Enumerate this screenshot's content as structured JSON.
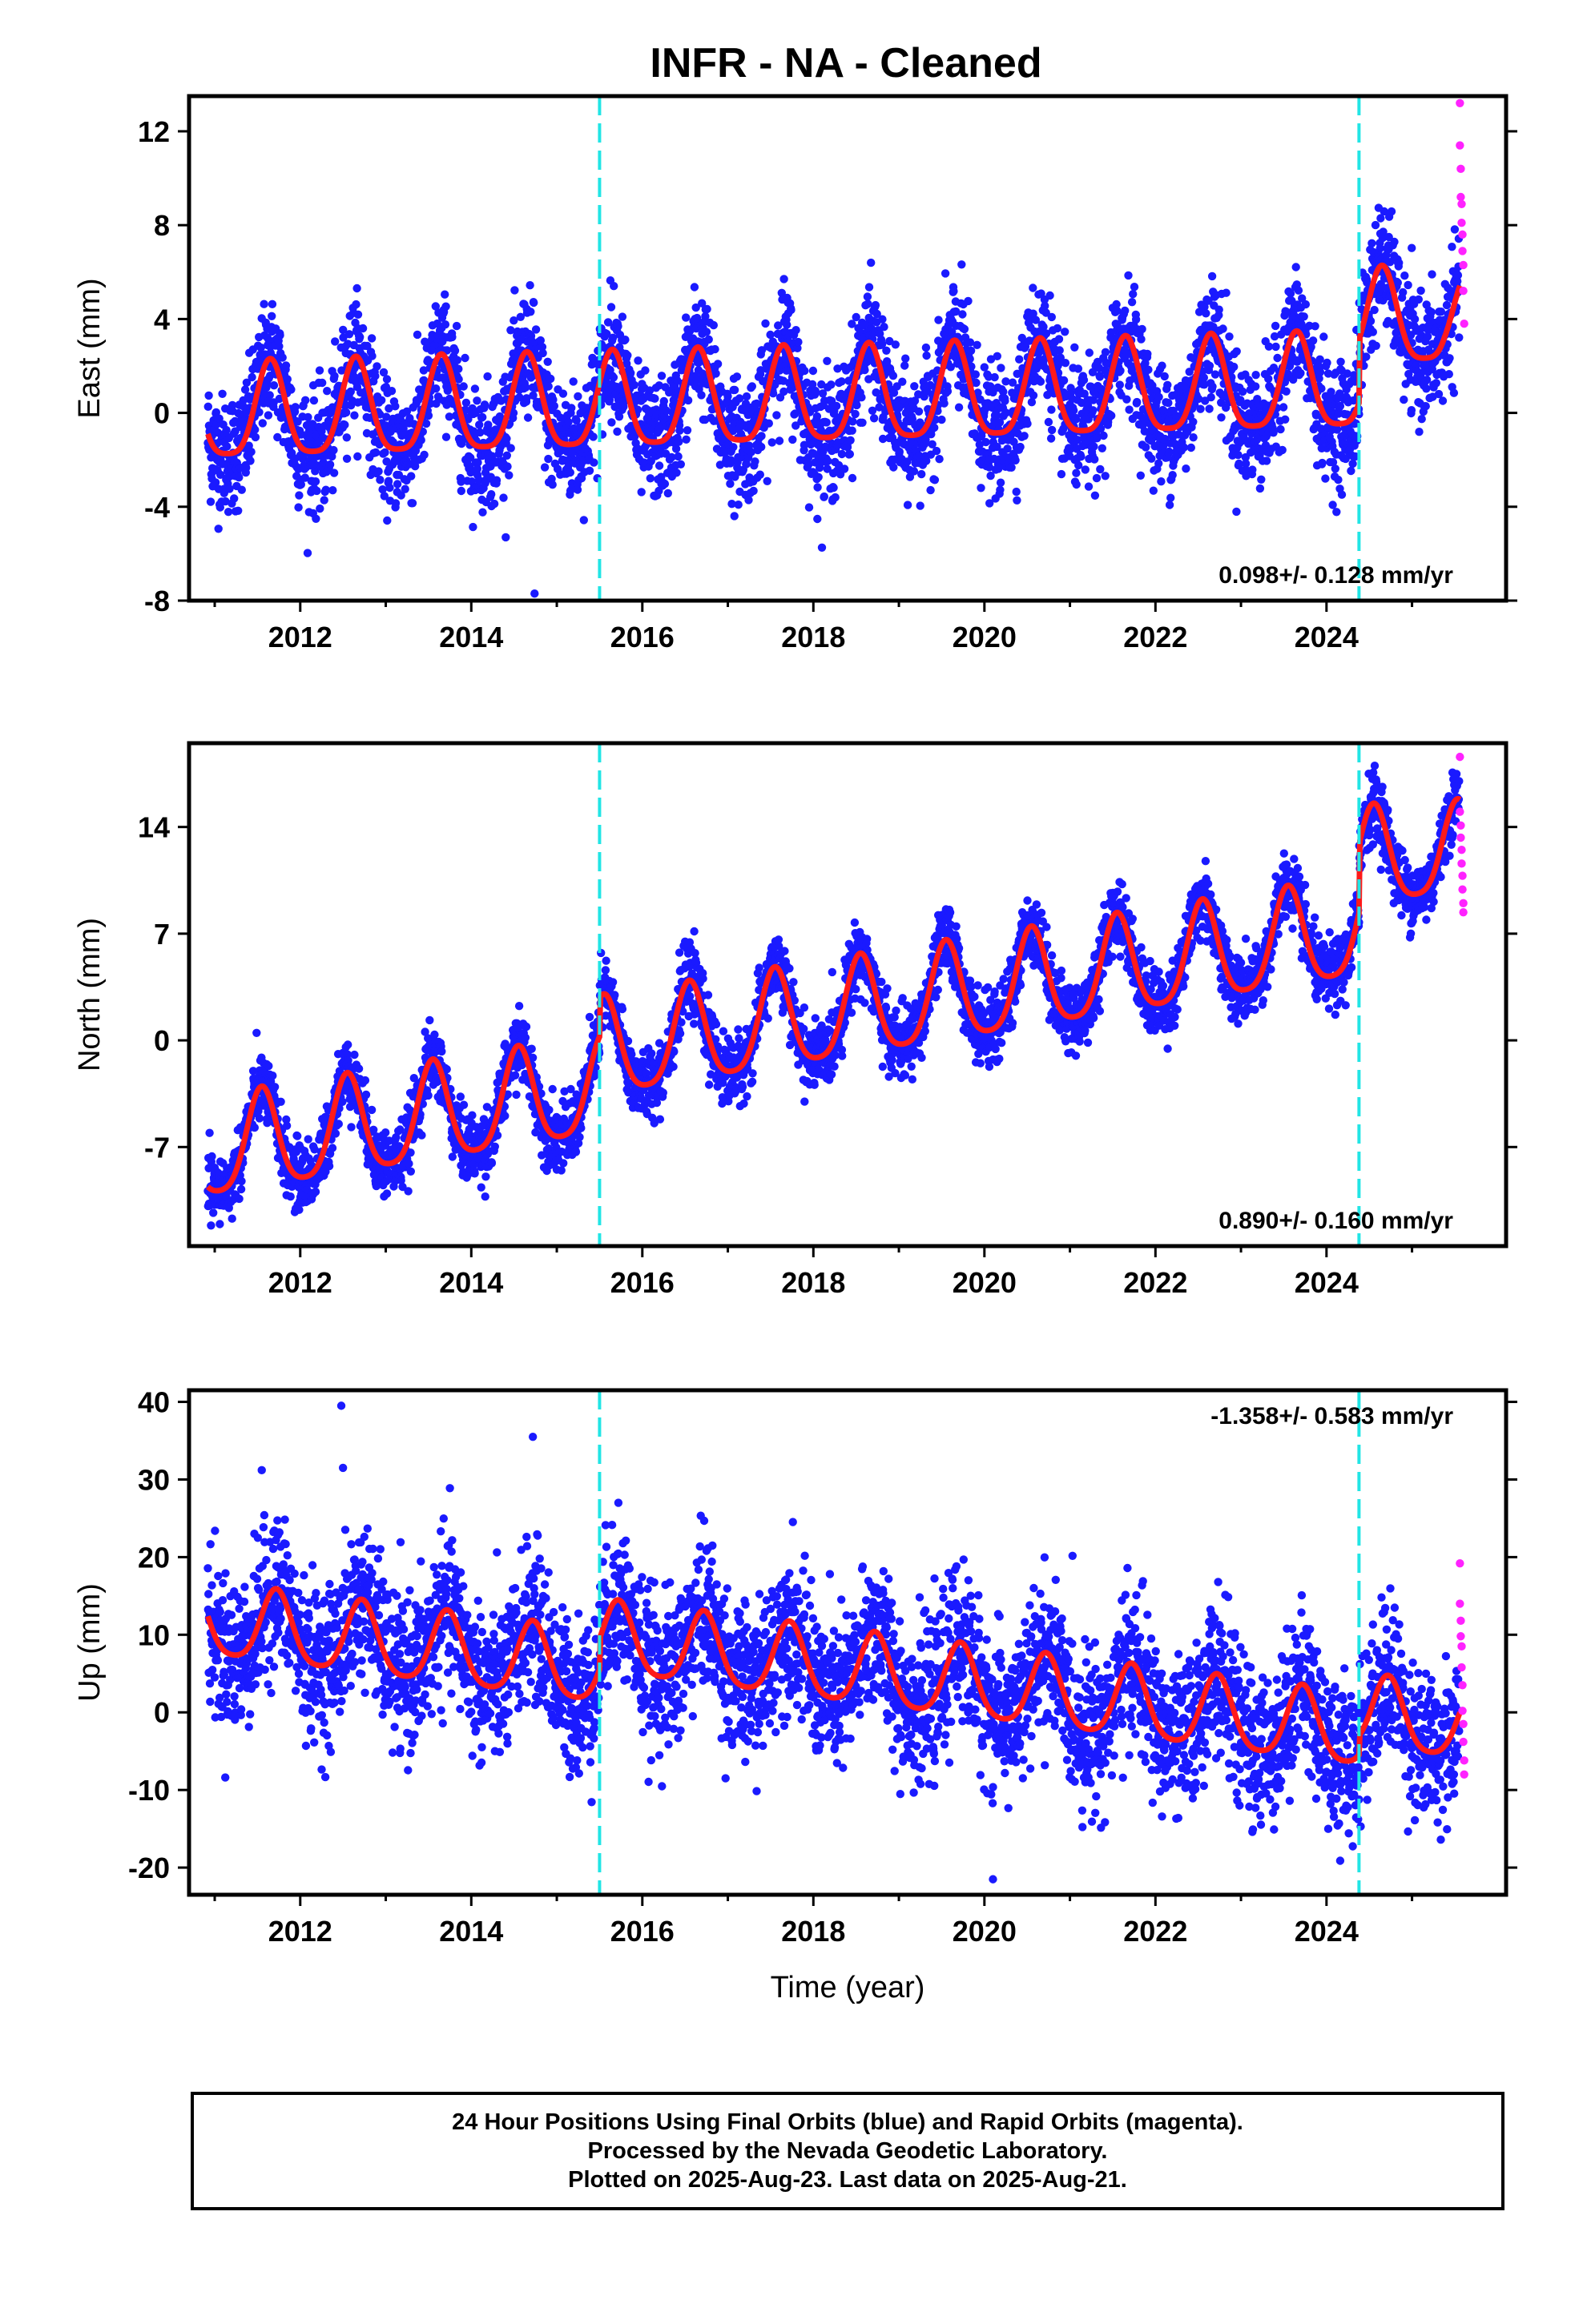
{
  "title": "INFR  - NA - Cleaned",
  "colors": {
    "final_orbits": "#1a1aff",
    "rapid_orbits": "#ff22ff",
    "model_fit": "#ff1a1a",
    "break_line": "#22e5e5",
    "frame": "#000000"
  },
  "chart_data": [
    {
      "type": "scatter",
      "component": "East",
      "ylabel": "East (mm)",
      "xlim": [
        2010.7,
        2026.1
      ],
      "ylim": [
        -8,
        13.5
      ],
      "yticks": [
        -8,
        -4,
        0,
        4,
        8,
        12
      ],
      "xticks": [
        2012,
        2014,
        2016,
        2018,
        2020,
        2022,
        2024
      ],
      "rate_label": "0.098+/- 0.128 mm/yr",
      "rate_position": "bottom-right",
      "breaks": [
        2015.5,
        2024.38
      ],
      "model": {
        "intercept": -0.2,
        "trend": 0.098,
        "annual_amp": 2.0,
        "annual_phase": 2011.65,
        "semiannual_amp": 0.45,
        "offset_at_break2": 2.7
      },
      "scatter_std": 1.25,
      "rapid_points": [
        {
          "x": 2025.56,
          "y": 13.2
        },
        {
          "x": 2025.56,
          "y": 11.4
        },
        {
          "x": 2025.57,
          "y": 10.4
        },
        {
          "x": 2025.57,
          "y": 9.2
        },
        {
          "x": 2025.58,
          "y": 8.9
        },
        {
          "x": 2025.58,
          "y": 8.1
        },
        {
          "x": 2025.59,
          "y": 7.6
        },
        {
          "x": 2025.59,
          "y": 6.9
        },
        {
          "x": 2025.6,
          "y": 6.3
        },
        {
          "x": 2025.6,
          "y": 5.2
        },
        {
          "x": 2025.61,
          "y": 3.8
        }
      ],
      "outliers": [
        {
          "x": 2014.74,
          "y": -7.7
        }
      ]
    },
    {
      "type": "scatter",
      "component": "North",
      "ylabel": "North (mm)",
      "xlim": [
        2010.7,
        2026.1
      ],
      "ylim": [
        -13.5,
        19.5
      ],
      "yticks": [
        -7,
        0,
        7,
        14
      ],
      "xticks": [
        2012,
        2014,
        2016,
        2018,
        2020,
        2022,
        2024
      ],
      "rate_label": "0.890+/- 0.160 mm/yr",
      "rate_position": "bottom-right",
      "breaks": [
        2015.5,
        2024.38
      ],
      "model": {
        "intercept": -7.3,
        "trend": 0.89,
        "annual_amp": 3.2,
        "annual_phase": 2011.55,
        "semiannual_amp": 0.6,
        "offset_at_break1": 2.5,
        "offset_at_break2": 4.5
      },
      "scatter_std": 1.1,
      "rapid_points": [
        {
          "x": 2025.56,
          "y": 18.6
        },
        {
          "x": 2025.56,
          "y": 15.0
        },
        {
          "x": 2025.57,
          "y": 14.1
        },
        {
          "x": 2025.57,
          "y": 13.3
        },
        {
          "x": 2025.58,
          "y": 12.5
        },
        {
          "x": 2025.58,
          "y": 11.6
        },
        {
          "x": 2025.59,
          "y": 10.8
        },
        {
          "x": 2025.59,
          "y": 9.9
        },
        {
          "x": 2025.6,
          "y": 9.0
        },
        {
          "x": 2025.6,
          "y": 8.4
        }
      ],
      "outliers": []
    },
    {
      "type": "scatter",
      "component": "Up",
      "ylabel": "Up (mm)",
      "xlabel": "Time (year)",
      "xlim": [
        2010.7,
        2026.1
      ],
      "ylim": [
        -23.5,
        41.5
      ],
      "yticks": [
        -20,
        -10,
        0,
        10,
        20,
        30,
        40
      ],
      "xticks": [
        2012,
        2014,
        2016,
        2018,
        2020,
        2022,
        2024
      ],
      "rate_label": "-1.358+/- 0.583 mm/yr",
      "rate_position": "top-right",
      "breaks": [
        2015.5,
        2024.38
      ],
      "model": {
        "intercept": 11.5,
        "trend": -1.358,
        "annual_amp": 4.6,
        "annual_phase": 2011.72,
        "semiannual_amp": 0.8,
        "offset_at_break1": 4.0,
        "offset_at_break2": 2.5
      },
      "scatter_std": 4.8,
      "rapid_points": [
        {
          "x": 2025.56,
          "y": 19.2
        },
        {
          "x": 2025.56,
          "y": 14.0
        },
        {
          "x": 2025.57,
          "y": 11.8
        },
        {
          "x": 2025.57,
          "y": 9.8
        },
        {
          "x": 2025.58,
          "y": 8.5
        },
        {
          "x": 2025.58,
          "y": 5.8
        },
        {
          "x": 2025.59,
          "y": 3.5
        },
        {
          "x": 2025.59,
          "y": 0.2
        },
        {
          "x": 2025.6,
          "y": -1.5
        },
        {
          "x": 2025.6,
          "y": -3.8
        },
        {
          "x": 2025.61,
          "y": -6.2
        },
        {
          "x": 2025.61,
          "y": -8.0
        }
      ],
      "outliers": [
        {
          "x": 2012.48,
          "y": 39.5
        },
        {
          "x": 2014.72,
          "y": 35.5
        },
        {
          "x": 2011.55,
          "y": 31.2
        },
        {
          "x": 2012.5,
          "y": 31.5
        },
        {
          "x": 2015.72,
          "y": 27.0
        },
        {
          "x": 2020.1,
          "y": -21.5
        }
      ]
    }
  ],
  "footer": {
    "line1": "24 Hour Positions Using Final Orbits (blue) and Rapid Orbits (magenta).",
    "line2": "Processed by the Nevada Geodetic Laboratory.",
    "line3": "Plotted on 2025-Aug-23. Last data on 2025-Aug-21."
  }
}
